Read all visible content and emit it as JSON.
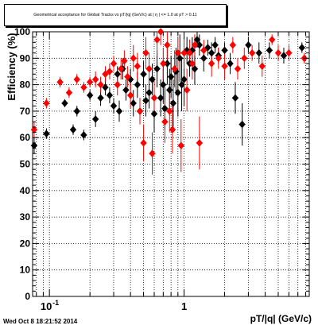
{
  "chart_data": {
    "type": "scatter",
    "title": "Geometrical acceptance for Global Tracks vs pT/|q| (GeV/c) at |  η | <= 1.0 at pT > 0.11",
    "xlabel": "pT/|q| (GeV/c)",
    "ylabel": "Efficiency (%)",
    "x_scale": "log",
    "xlim": [
      0.075,
      8.5
    ],
    "ylim": [
      0,
      100
    ],
    "x_tick_labels": [
      "10",
      "1"
    ],
    "x_tick_label_exponent": "-1",
    "y_tick_labels": [
      "0",
      "10",
      "20",
      "30",
      "40",
      "50",
      "60",
      "70",
      "80",
      "90",
      "100"
    ],
    "grid": true,
    "series": [
      {
        "color": "#000000",
        "marker": "diamond",
        "points": [
          [
            0.077,
            57,
            3
          ],
          [
            0.095,
            61.5,
            2
          ],
          [
            0.13,
            73,
            1.5
          ],
          [
            0.15,
            63,
            2
          ],
          [
            0.16,
            70,
            2
          ],
          [
            0.18,
            61,
            2
          ],
          [
            0.2,
            76,
            2
          ],
          [
            0.22,
            67,
            3
          ],
          [
            0.24,
            75,
            3
          ],
          [
            0.26,
            79,
            3
          ],
          [
            0.28,
            76,
            3
          ],
          [
            0.3,
            72,
            3
          ],
          [
            0.32,
            84,
            3
          ],
          [
            0.33,
            70,
            4
          ],
          [
            0.35,
            86,
            4
          ],
          [
            0.37,
            78,
            4
          ],
          [
            0.4,
            82,
            4
          ],
          [
            0.42,
            73,
            5
          ],
          [
            0.45,
            80,
            5
          ],
          [
            0.47,
            70,
            5
          ],
          [
            0.5,
            84,
            5
          ],
          [
            0.52,
            74,
            6
          ],
          [
            0.55,
            77,
            6
          ],
          [
            0.58,
            82,
            6
          ],
          [
            0.6,
            69,
            7
          ],
          [
            0.63,
            86,
            7
          ],
          [
            0.67,
            75,
            7
          ],
          [
            0.7,
            80,
            7
          ],
          [
            0.72,
            71,
            8
          ],
          [
            0.75,
            88,
            8
          ],
          [
            0.78,
            78,
            8
          ],
          [
            0.8,
            83,
            8
          ],
          [
            0.83,
            73,
            9
          ],
          [
            0.87,
            85,
            9
          ],
          [
            0.9,
            77,
            9
          ],
          [
            0.93,
            90,
            9
          ],
          [
            0.96,
            80,
            10
          ],
          [
            1.0,
            82,
            10
          ],
          [
            1.05,
            93,
            5
          ],
          [
            1.1,
            88,
            5
          ],
          [
            1.15,
            93,
            5
          ],
          [
            1.2,
            86,
            6
          ],
          [
            1.25,
            97,
            3
          ],
          [
            1.3,
            95,
            4
          ],
          [
            1.4,
            90,
            5
          ],
          [
            1.5,
            94,
            3
          ],
          [
            1.6,
            92,
            4
          ],
          [
            1.7,
            95,
            3
          ],
          [
            1.8,
            91,
            3
          ],
          [
            2.0,
            93,
            3
          ],
          [
            2.2,
            88,
            4
          ],
          [
            2.4,
            75,
            6
          ],
          [
            2.7,
            65,
            8
          ],
          [
            3.0,
            95,
            3
          ],
          [
            3.6,
            92,
            4
          ],
          [
            4.3,
            93,
            3
          ],
          [
            5.5,
            91,
            3
          ],
          [
            7.5,
            94,
            2
          ]
        ]
      },
      {
        "color": "#ff0000",
        "marker": "diamond",
        "points": [
          [
            0.077,
            63,
            3
          ],
          [
            0.095,
            73,
            2
          ],
          [
            0.12,
            81,
            2
          ],
          [
            0.14,
            77,
            2
          ],
          [
            0.16,
            82,
            2
          ],
          [
            0.18,
            79,
            2
          ],
          [
            0.2,
            81,
            2
          ],
          [
            0.22,
            82,
            3
          ],
          [
            0.24,
            80,
            3
          ],
          [
            0.26,
            84,
            3
          ],
          [
            0.28,
            85,
            3
          ],
          [
            0.3,
            88,
            3
          ],
          [
            0.32,
            80,
            4
          ],
          [
            0.34,
            86,
            4
          ],
          [
            0.36,
            89,
            4
          ],
          [
            0.38,
            83,
            4
          ],
          [
            0.4,
            76,
            5
          ],
          [
            0.42,
            90,
            5
          ],
          [
            0.45,
            87,
            5
          ],
          [
            0.47,
            70,
            5
          ],
          [
            0.5,
            58,
            7
          ],
          [
            0.52,
            92,
            6
          ],
          [
            0.55,
            86,
            6
          ],
          [
            0.58,
            54,
            8
          ],
          [
            0.6,
            75,
            7
          ],
          [
            0.63,
            97,
            6
          ],
          [
            0.67,
            100,
            5
          ],
          [
            0.7,
            88,
            6
          ],
          [
            0.72,
            66,
            8
          ],
          [
            0.75,
            95,
            7
          ],
          [
            0.78,
            70,
            8
          ],
          [
            0.82,
            63,
            9
          ],
          [
            0.85,
            86,
            7
          ],
          [
            0.9,
            92,
            6
          ],
          [
            0.95,
            57,
            10
          ],
          [
            1.0,
            92,
            6
          ],
          [
            1.05,
            78,
            8
          ],
          [
            1.1,
            92,
            5
          ],
          [
            1.15,
            88,
            6
          ],
          [
            1.2,
            95,
            4
          ],
          [
            1.3,
            58,
            10
          ],
          [
            1.4,
            93,
            4
          ],
          [
            1.6,
            88,
            5
          ],
          [
            1.8,
            90,
            4
          ],
          [
            2.0,
            87,
            5
          ],
          [
            2.3,
            95,
            3
          ],
          [
            2.5,
            86,
            4
          ],
          [
            2.8,
            90,
            4
          ],
          [
            3.2,
            92,
            3
          ],
          [
            3.8,
            87,
            4
          ],
          [
            4.5,
            97,
            2
          ],
          [
            5.0,
            92,
            3
          ],
          [
            6.0,
            92,
            3
          ],
          [
            7.8,
            90,
            2
          ]
        ]
      }
    ],
    "annotation": "Wed Oct  8 18:21:52 2014"
  }
}
